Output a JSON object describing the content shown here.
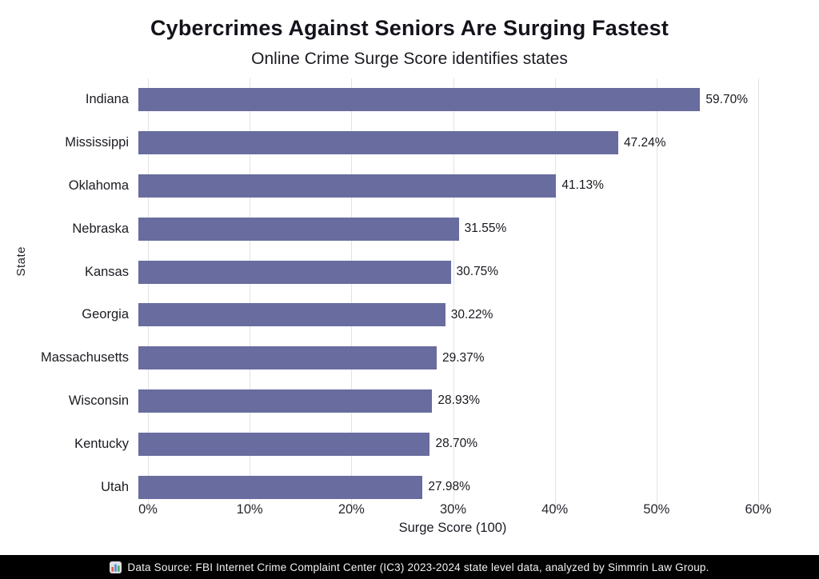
{
  "header": {
    "title": "Cybercrimes Against Seniors Are Surging Fastest",
    "subtitle": "Online Crime Surge Score identifies states"
  },
  "chart_data": {
    "type": "bar",
    "orientation": "horizontal",
    "title": "Cybercrimes Against Seniors Are Surging Fastest",
    "subtitle": "Online Crime Surge Score identifies states",
    "categories": [
      "Indiana",
      "Mississippi",
      "Oklahoma",
      "Nebraska",
      "Kansas",
      "Georgia",
      "Massachusetts",
      "Wisconsin",
      "Kentucky",
      "Utah"
    ],
    "values": [
      59.7,
      47.24,
      41.13,
      31.55,
      30.75,
      30.22,
      29.37,
      28.93,
      28.7,
      27.98
    ],
    "value_labels": [
      "59.70%",
      "47.24%",
      "41.13%",
      "31.55%",
      "30.75%",
      "30.22%",
      "29.37%",
      "28.93%",
      "28.70%",
      "27.98%"
    ],
    "xlabel": "Surge Score (100)",
    "ylabel": "State",
    "xlim": [
      0,
      60
    ],
    "xticks": [
      0,
      10,
      20,
      30,
      40,
      50,
      60
    ],
    "xtick_labels": [
      "0%",
      "10%",
      "20%",
      "30%",
      "40%",
      "50%",
      "60%"
    ],
    "grid": "vertical-gridlines",
    "legend": "none",
    "bar_color": "#686c9e"
  },
  "footer": {
    "icon": "bar-chart-icon",
    "text": "Data Source: FBI Internet Crime Complaint Center (IC3) 2023-2024 state level data, analyzed by Simmrin Law Group."
  },
  "colors": {
    "bar": "#686c9e",
    "gridline": "#e3e3e3",
    "background": "#ffffff",
    "footer_bg": "#000000",
    "footer_text": "#f2f2f2"
  }
}
